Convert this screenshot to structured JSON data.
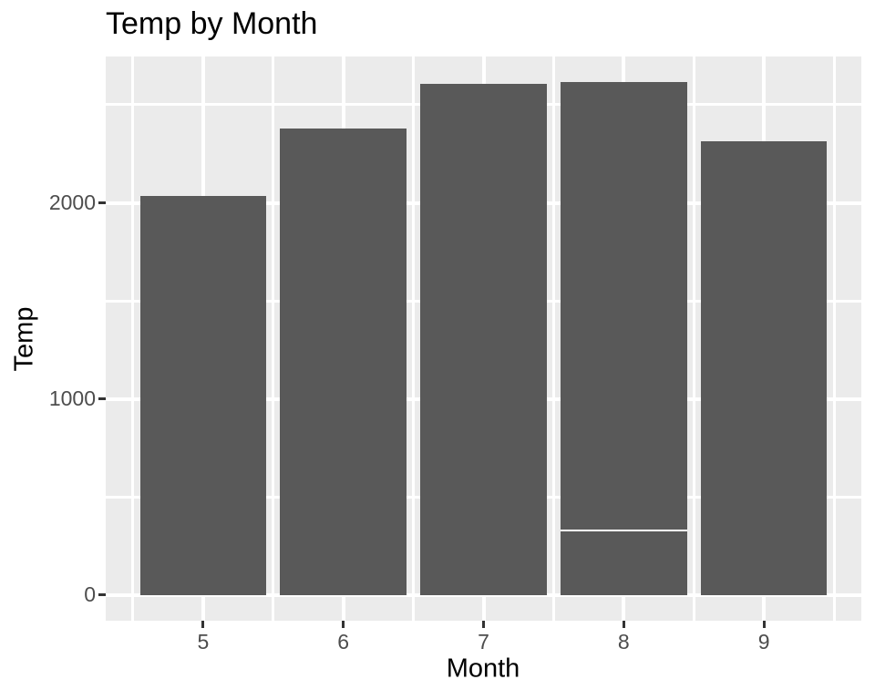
{
  "chart_data": {
    "type": "bar",
    "title": "Temp by Month",
    "xlabel": "Month",
    "ylabel": "Temp",
    "categories": [
      "5",
      "6",
      "7",
      "8",
      "9"
    ],
    "bars": [
      {
        "month": 5,
        "total": 2035,
        "segments": [
          2035
        ]
      },
      {
        "month": 6,
        "total": 2380,
        "segments": [
          2380
        ]
      },
      {
        "month": 7,
        "total": 2608,
        "segments": [
          2608
        ]
      },
      {
        "month": 8,
        "total": 2615,
        "segments": [
          330,
          2285
        ]
      },
      {
        "month": 9,
        "total": 2312,
        "segments": [
          2312
        ]
      }
    ],
    "bar_width": 0.9,
    "x_major_ticks": [
      5,
      6,
      7,
      8,
      9
    ],
    "x_minor_ticks": [
      4.5,
      5.5,
      6.5,
      7.5,
      8.5,
      9.5
    ],
    "y_major_ticks": [
      0,
      1000,
      2000
    ],
    "y_minor_ticks": [
      500,
      1500,
      2500
    ],
    "xlim": [
      4.305,
      9.695
    ],
    "ylim": [
      -131,
      2746
    ],
    "grid": true,
    "legend_position": "none",
    "style": {
      "plot_background": "#FFFFFF",
      "panel_background": "#EBEBEB",
      "bar_fill": "#595959",
      "grid_color": "#FFFFFF",
      "axis_tick_color": "#333333",
      "tick_label_color": "#4D4D4D",
      "title_color": "#000000",
      "stack_divider_color": "#FFFFFF"
    }
  }
}
